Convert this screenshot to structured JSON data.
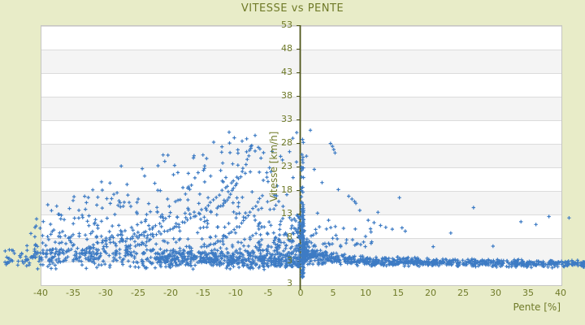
{
  "colors": {
    "background": "#e8ecc8",
    "text_olive": "#6f7a28",
    "axis_olive": "#4f561a",
    "gridline": "#dcdcdc",
    "band_gray": "#f4f4f4",
    "band_white": "#ffffff",
    "marker_blue": "#3d7bc4",
    "plot_border": "#c6c6c2"
  },
  "chart_data": {
    "type": "scatter",
    "title": "VITESSE vs PENTE",
    "xlabel": "Pente [%]",
    "ylabel": "Vitesse [km/h]",
    "xlim": [
      -40,
      40
    ],
    "ylim": [
      -2,
      53
    ],
    "y_axis_at_x": 0,
    "x_ticks": [
      -40,
      -35,
      -30,
      -25,
      -20,
      -15,
      -10,
      -5,
      0,
      5,
      10,
      15,
      20,
      25,
      30,
      35,
      40
    ],
    "y_ticks": [
      53,
      48,
      43,
      38,
      33,
      28,
      23,
      18,
      13,
      8,
      3
    ],
    "y_axis_bottom_label": "3",
    "grid": "horizontal alternating white/gray bands between 5 km/h gridlines",
    "legend": "none",
    "marker": "plus",
    "summary": "Speed vs slope scatter (~2000 GPS points). Downhill (negative pente): broad cloud, max speed rises from ~12 km/h at -40% to ~30 km/h near -10%, with several tight accelerating arc-shaped traces; dense low-speed strip 1-6 km/h everywhere. A dense vertical streak sits at pente=0 (speeds 0-29 km/h). Uphill (positive pente): tight decreasing band from ~5 km/h near 0% to ~2 km/h at 40%, sparse outliers up to 28 km/h below 10%. Points overflow the frame beyond +/-40%.",
    "generator": {
      "seed": 7,
      "clusters": [
        {
          "kind": "strip",
          "count": 430,
          "x_min": -45.5,
          "x_max": -0.2,
          "center": 3.4,
          "halfwidth": 2.4
        },
        {
          "kind": "strip",
          "count": 220,
          "x_min": -22.0,
          "x_max": -0.3,
          "center": 3.2,
          "halfwidth": 1.6
        },
        {
          "kind": "cloud",
          "count": 500,
          "x_min": -41.0,
          "x_max": -0.5,
          "base": 4.5,
          "k": 2.3,
          "env": [
            [
              -46,
              9
            ],
            [
              -42,
              12
            ],
            [
              -38,
              15
            ],
            [
              -33,
              18
            ],
            [
              -28,
              22
            ],
            [
              -23,
              25
            ],
            [
              -18,
              27
            ],
            [
              -13,
              28.5
            ],
            [
              -8,
              30
            ],
            [
              -3,
              28
            ],
            [
              0,
              29
            ]
          ]
        },
        {
          "kind": "blob",
          "count": 140,
          "x0": -0.15,
          "xspan": 6.5,
          "xk": 1.9,
          "v0": 1.8,
          "vspan": 11.0,
          "vk": 2.2
        },
        {
          "kind": "band",
          "count": 800,
          "x_min": 0.3,
          "x_max": 45.6,
          "xk": 1.35,
          "center": [
            [
              0.3,
              4.6
            ],
            [
              2,
              4.0
            ],
            [
              5,
              3.5
            ],
            [
              10,
              3.0
            ],
            [
              20,
              2.7
            ],
            [
              30,
              2.5
            ],
            [
              46,
              2.3
            ]
          ],
          "halfwidth": [
            [
              0.3,
              2.2
            ],
            [
              5,
              1.6
            ],
            [
              10,
              1.2
            ],
            [
              20,
              1.0
            ],
            [
              46,
              0.9
            ]
          ]
        },
        {
          "kind": "blob",
          "count": 55,
          "x0": 0.3,
          "xspan": -11.0,
          "xk": 1.5,
          "v0": 6.0,
          "vspan": 4.5,
          "vk": 1.7
        },
        {
          "kind": "streak",
          "count": 110,
          "x_min": 0.15,
          "x_max": 0.5,
          "v_min": -0.5,
          "v_max": 15.5,
          "vk": 1.05
        },
        {
          "kind": "streak",
          "count": 18,
          "x_min": 0.12,
          "x_max": 0.45,
          "v_min": 15.5,
          "v_max": 29.3,
          "vk": 1.0
        },
        {
          "kind": "arc",
          "from": [
            -24.5,
            8.2
          ],
          "to": [
            -9.8,
            20.8
          ],
          "count": 34,
          "curve": 1.8,
          "jitter": 0.18
        },
        {
          "kind": "arc",
          "from": [
            -15.2,
            6.1
          ],
          "to": [
            -6.3,
            16.2
          ],
          "count": 26,
          "curve": 1.9,
          "jitter": 0.15
        },
        {
          "kind": "arc",
          "from": [
            -12.8,
            14.2
          ],
          "to": [
            -7.5,
            27.4
          ],
          "count": 22,
          "curve": 1.6,
          "jitter": 0.15
        },
        {
          "kind": "arc",
          "from": [
            -27.8,
            7.0
          ],
          "to": [
            -20.2,
            12.5
          ],
          "count": 16,
          "curve": 1.4,
          "jitter": 0.15
        },
        {
          "kind": "arc",
          "from": [
            -33.5,
            5.5
          ],
          "to": [
            -27.0,
            9.5
          ],
          "count": 12,
          "curve": 1.3,
          "jitter": 0.2
        },
        {
          "kind": "points",
          "pts": [
            [
              1.5,
              30.7
            ],
            [
              -0.6,
              30.2
            ],
            [
              -1.2,
              29.0
            ],
            [
              0.9,
              25.2
            ],
            [
              2.1,
              22.4
            ],
            [
              4.6,
              27.9
            ],
            [
              4.9,
              27.3
            ],
            [
              5.1,
              26.6
            ],
            [
              5.3,
              25.9
            ],
            [
              3.3,
              19.6
            ],
            [
              5.8,
              18.1
            ],
            [
              7.4,
              16.7
            ],
            [
              7.9,
              16.1
            ],
            [
              8.3,
              15.6
            ],
            [
              8.5,
              15.2
            ],
            [
              9.1,
              13.7
            ],
            [
              11.9,
              13.3
            ],
            [
              2.6,
              13.1
            ],
            [
              4.3,
              11.6
            ],
            [
              6.6,
              9.9
            ],
            [
              10.4,
              11.6
            ],
            [
              11.3,
              11.1
            ],
            [
              12.3,
              10.5
            ],
            [
              13.1,
              10.1
            ],
            [
              14.1,
              9.7
            ],
            [
              16.1,
              9.3
            ],
            [
              15.2,
              16.4
            ],
            [
              15.6,
              10.0
            ],
            [
              20.4,
              6.0
            ],
            [
              23.1,
              8.9
            ],
            [
              26.6,
              14.3
            ],
            [
              29.6,
              6.1
            ],
            [
              33.9,
              11.3
            ],
            [
              36.2,
              10.7
            ],
            [
              38.2,
              12.4
            ],
            [
              41.3,
              12.1
            ],
            [
              -35.0,
              15.8
            ],
            [
              -38.9,
              14.9
            ],
            [
              -36.9,
              11.9
            ],
            [
              -27.6,
              23.1
            ],
            [
              -26.7,
              19.2
            ],
            [
              -31.2,
              16.5
            ],
            [
              -24.0,
              21.0
            ],
            [
              -20.9,
              24.1
            ],
            [
              -16.4,
              25.3
            ],
            [
              -10.2,
              29.1
            ],
            [
              -9.0,
              28.4
            ],
            [
              -8.3,
              28.9
            ],
            [
              -12.1,
              27.2
            ],
            [
              -14.8,
              22.6
            ],
            [
              -6.1,
              24.8
            ],
            [
              -5.2,
              21.7
            ],
            [
              -4.4,
              26.2
            ],
            [
              -2.8,
              24.4
            ],
            [
              -7.0,
              29.6
            ],
            [
              -11.0,
              30.3
            ],
            [
              -3.6,
              18.9
            ],
            [
              43.5,
              2.2
            ],
            [
              44.8,
              1.9
            ],
            [
              42.6,
              3.1
            ],
            [
              -43.2,
              4.1
            ],
            [
              -44.6,
              3.0
            ],
            [
              -42.1,
              6.2
            ],
            [
              -41.5,
              8.8
            ],
            [
              -45.2,
              2.6
            ]
          ]
        }
      ]
    }
  }
}
